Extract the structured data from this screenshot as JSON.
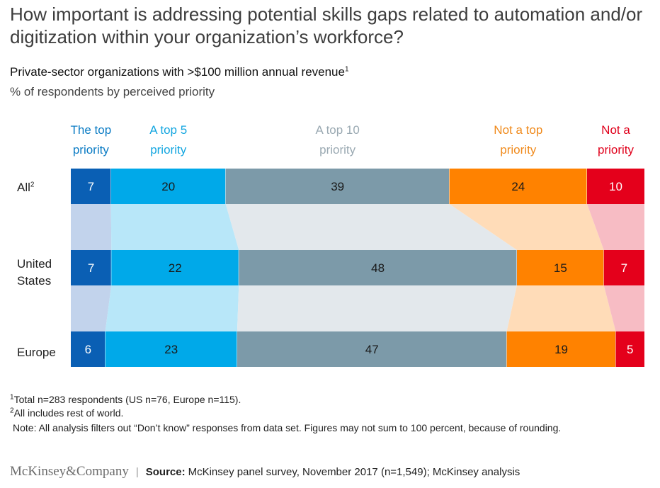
{
  "title": "How important is addressing potential skills gaps related to automation and/or digitization within your organization’s workforce?",
  "subtitle": "Private-sector organizations with >$100 million annual revenue",
  "subtitle_sup": "1",
  "unit_label": "% of respondents by perceived priority",
  "chart_data": {
    "type": "bar",
    "orientation": "horizontal-stacked-100",
    "categories": [
      "All",
      "United States",
      "Europe"
    ],
    "category_superscripts": [
      "2",
      "",
      ""
    ],
    "series": [
      {
        "name": "The top priority",
        "values": [
          7,
          7,
          6
        ],
        "color": "#0a5fb4",
        "text_color": "#ffffff",
        "band_color": "#c2d3ec"
      },
      {
        "name": "A top 5 priority",
        "values": [
          20,
          22,
          23
        ],
        "color": "#00a9e9",
        "text_color": "#1a1a1a",
        "band_color": "#b8e7f9"
      },
      {
        "name": "A top 10 priority",
        "values": [
          39,
          48,
          47
        ],
        "color": "#7c9aa9",
        "text_color": "#1a1a1a",
        "band_color": "#e3e8ec"
      },
      {
        "name": "Not a top priority",
        "values": [
          24,
          15,
          19
        ],
        "color": "#ff8200",
        "text_color": "#1a1a1a",
        "band_color": "#ffdcb8"
      },
      {
        "name": "Not a priority",
        "values": [
          10,
          7,
          5
        ],
        "color": "#e4001b",
        "text_color": "#ffffff",
        "band_color": "#f7bcc4"
      }
    ],
    "legend_lines": [
      [
        "The top",
        "priority"
      ],
      [
        "A top 5",
        "priority"
      ],
      [
        "A top 10",
        "priority"
      ],
      [
        "Not a top",
        "priority"
      ],
      [
        "Not a",
        "priority"
      ]
    ],
    "legend_colors": [
      "#0a7bc4",
      "#13a6e0",
      "#9aa9b2",
      "#f08a1c",
      "#e0001b"
    ],
    "legend_placement": "top",
    "grid": false
  },
  "row_labels": [
    {
      "lines": [
        "All"
      ],
      "sup": "2"
    },
    {
      "lines": [
        "United",
        "States"
      ],
      "sup": ""
    },
    {
      "lines": [
        "Europe"
      ],
      "sup": ""
    }
  ],
  "footnotes": {
    "f1_sup": "1",
    "f1": "Total n=283 respondents (US n=76, Europe n=115).",
    "f2_sup": "2",
    "f2": "All includes rest of world.",
    "note": "Note: All analysis filters out “Don’t know” responses from data set. Figures may not sum to 100 percent, because of rounding."
  },
  "footer": {
    "brand": "McKinsey&Company",
    "separator": "|",
    "source_label": "Source:",
    "source_text": "McKinsey panel survey, November 2017 (n=1,549); McKinsey analysis"
  }
}
